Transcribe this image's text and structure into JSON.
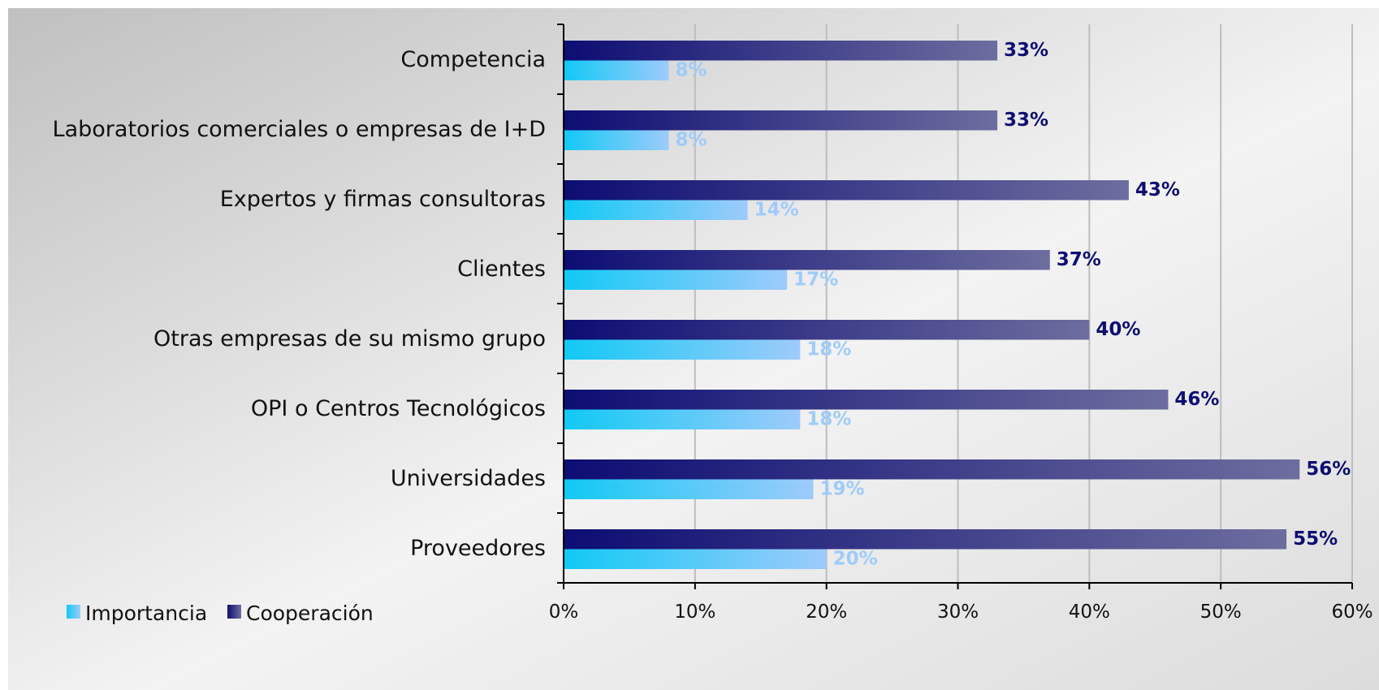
{
  "chart_data": {
    "type": "bar",
    "orientation": "horizontal",
    "categories": [
      "Competencia",
      "Laboratorios comerciales o empresas de I+D",
      "Expertos y firmas consultoras",
      "Clientes",
      "Otras empresas de su mismo grupo",
      "OPI o Centros Tecnológicos",
      "Universidades",
      "Proveedores"
    ],
    "series": [
      {
        "name": "Importancia",
        "values": [
          8,
          8,
          14,
          17,
          18,
          18,
          19,
          20
        ],
        "labels": [
          "8%",
          "8%",
          "14%",
          "17%",
          "18%",
          "18%",
          "19%",
          "20%"
        ],
        "color_start": "#11c9f5",
        "color_end": "#9ecbfb",
        "label_color": "#9ecbfb"
      },
      {
        "name": "Cooperación",
        "values": [
          33,
          33,
          43,
          37,
          40,
          46,
          56,
          55
        ],
        "labels": [
          "33%",
          "33%",
          "43%",
          "37%",
          "40%",
          "46%",
          "56%",
          "55%"
        ],
        "color_start": "#0d0d73",
        "color_end": "#6d6d9f",
        "label_color": "#0d0d73"
      }
    ],
    "x_axis": {
      "min": 0,
      "max": 60,
      "ticks": [
        0,
        10,
        20,
        30,
        40,
        50,
        60
      ],
      "tick_labels": [
        "0%",
        "10%",
        "20%",
        "30%",
        "40%",
        "50%",
        "60%"
      ]
    },
    "grid": "vertical",
    "legend_position": "bottom-left"
  },
  "colors": {
    "background_start": "#c2c2c2",
    "background_end": "#fafafa",
    "grid": "#bdbdbd",
    "axis": "#000000"
  }
}
